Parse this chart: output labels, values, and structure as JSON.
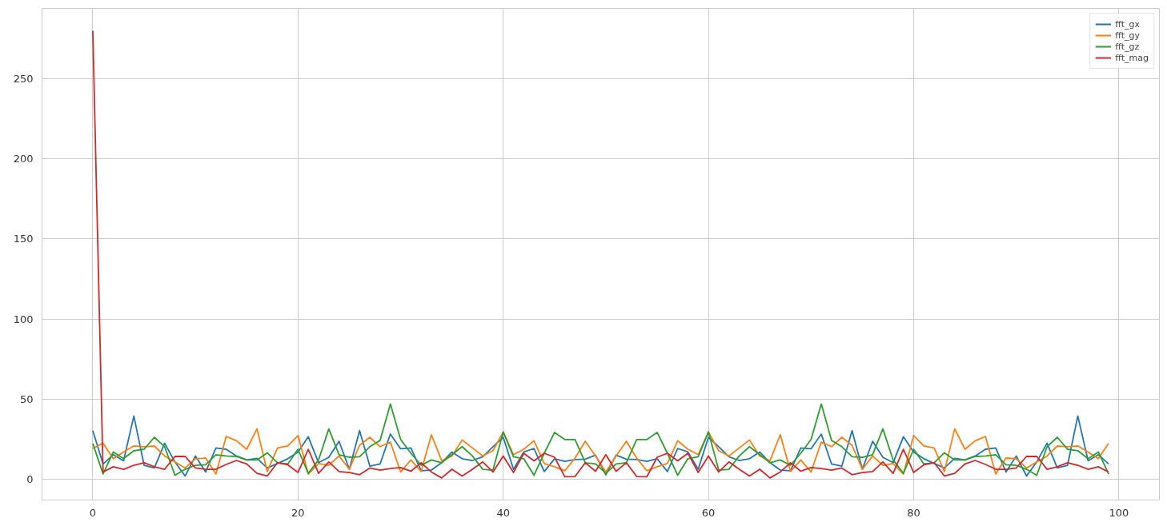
{
  "chart_data": {
    "type": "line",
    "x": [
      0,
      1,
      2,
      3,
      4,
      5,
      6,
      7,
      8,
      9,
      10,
      11,
      12,
      13,
      14,
      15,
      16,
      17,
      18,
      19,
      20,
      21,
      22,
      23,
      24,
      25,
      26,
      27,
      28,
      29,
      30,
      31,
      32,
      33,
      34,
      35,
      36,
      37,
      38,
      39,
      40,
      41,
      42,
      43,
      44,
      45,
      46,
      47,
      48,
      49,
      50,
      51,
      52,
      53,
      54,
      55,
      56,
      57,
      58,
      59,
      60,
      61,
      62,
      63,
      64,
      65,
      66,
      67,
      68,
      69,
      70,
      71,
      72,
      73,
      74,
      75,
      76,
      77,
      78,
      79,
      80,
      81,
      82,
      83,
      84,
      85,
      86,
      87,
      88,
      89,
      90,
      91,
      92,
      93,
      94,
      95,
      96,
      97,
      98,
      99
    ],
    "series": [
      {
        "name": "fft_gx",
        "color": "#1f77b4",
        "values": [
          30.3,
          9.5,
          15.3,
          11.5,
          39.5,
          8.7,
          7,
          22.5,
          10.8,
          2,
          14.5,
          4.5,
          19.5,
          18.7,
          14.5,
          12,
          13,
          7,
          9.8,
          12.8,
          17,
          26.5,
          10.3,
          13.7,
          23.7,
          6.2,
          30.3,
          8.2,
          9.5,
          28.2,
          19,
          19.5,
          5.3,
          5.7,
          10.3,
          17,
          12.8,
          11.7,
          14,
          20.3,
          26.2,
          6.2,
          17,
          19.2,
          4.8,
          12.8,
          11.2,
          12.3,
          12.5,
          15,
          2.8,
          15,
          12.5,
          12.3,
          11.2,
          12.8,
          4.8,
          19.2,
          17,
          6.2,
          26.2,
          20.3,
          14,
          11.7,
          12.8,
          17,
          10.3,
          5.7,
          5.3,
          19.5,
          19,
          28.2,
          9.5,
          8.2,
          30.3,
          6.2,
          23.7,
          13.7,
          10.3,
          26.5,
          17,
          12.8,
          9.8,
          7,
          13,
          12,
          14.5,
          18.7,
          19.5,
          4.5,
          14.5,
          2,
          10.8,
          22.5,
          7,
          8.7,
          39.5,
          11.5,
          15.3,
          9.5
        ]
      },
      {
        "name": "fft_gy",
        "color": "#ff7f0e",
        "values": [
          19.2,
          22.5,
          12.8,
          17,
          20.8,
          20.3,
          20.7,
          14.5,
          10.8,
          7,
          12.8,
          13.2,
          3.2,
          26.7,
          24,
          18.7,
          31.5,
          4.8,
          19.5,
          20.7,
          27.3,
          3.2,
          9.8,
          8.7,
          14.5,
          6.2,
          21.2,
          26.2,
          20.3,
          23.2,
          4.5,
          12,
          4.8,
          27.8,
          11.5,
          14.5,
          24.5,
          19.5,
          14.5,
          17.8,
          29.5,
          15.3,
          18.7,
          24,
          9.8,
          7.8,
          5.3,
          13.2,
          23.7,
          14.5,
          4.5,
          14.5,
          23.7,
          13.2,
          5.3,
          7.8,
          9.8,
          24,
          18.7,
          15.3,
          29.5,
          17.8,
          14.5,
          19.5,
          24.5,
          14.5,
          11.5,
          27.8,
          4.8,
          12,
          4.5,
          23.2,
          20.3,
          26.2,
          21.2,
          6.2,
          14.5,
          8.7,
          9.8,
          3.2,
          27.3,
          20.7,
          19.5,
          4.8,
          31.5,
          18.7,
          24,
          26.7,
          3.2,
          13.2,
          12.8,
          7,
          10.8,
          14.5,
          20.7,
          20.3,
          20.8,
          17,
          12.8,
          22.5
        ]
      },
      {
        "name": "fft_gz",
        "color": "#2ca02c",
        "values": [
          22.3,
          3.3,
          17,
          12.8,
          17.8,
          18.7,
          26.2,
          20.3,
          2.5,
          6.2,
          8.7,
          9,
          15.3,
          14.5,
          14.2,
          12,
          12,
          16.5,
          10.3,
          9.5,
          18.7,
          3.7,
          12,
          31.5,
          15.3,
          13.7,
          14,
          20.3,
          24.2,
          47,
          24.8,
          16.2,
          8.7,
          12,
          10.3,
          15.3,
          20.3,
          14.5,
          6.2,
          5.7,
          29.5,
          14,
          12.8,
          2.5,
          16.2,
          29.2,
          24.8,
          24.8,
          10.3,
          9.5,
          3.7,
          9.5,
          10.3,
          24.8,
          24.8,
          29.2,
          16.2,
          2.5,
          12.8,
          14,
          29.5,
          5.7,
          6.2,
          14.5,
          20.3,
          15.3,
          10.3,
          12,
          8.7,
          16.2,
          24.8,
          47,
          24.2,
          20.3,
          14,
          13.7,
          15.3,
          31.5,
          12,
          3.7,
          18.7,
          9.5,
          10.3,
          16.5,
          12,
          12,
          14.2,
          14.5,
          15.3,
          9,
          8.7,
          6.2,
          2.5,
          20.3,
          26.2,
          18.7,
          17.8,
          12.8,
          17,
          3.3
        ]
      },
      {
        "name": "fft_mag",
        "color": "#d62728",
        "values": [
          280,
          4.5,
          7.8,
          6.2,
          8.7,
          10.3,
          7.8,
          6.2,
          14.2,
          14.2,
          7,
          6.2,
          6.2,
          9.2,
          11.7,
          9.5,
          3.7,
          2,
          10.3,
          9,
          4.2,
          18.7,
          3.7,
          10.8,
          4.8,
          4.2,
          2.8,
          7,
          5.7,
          6.7,
          7.3,
          5,
          10.3,
          4.5,
          0.8,
          6.2,
          2,
          6.2,
          10.8,
          4.5,
          14.5,
          4.2,
          16.2,
          11.5,
          16.2,
          13.7,
          1.5,
          1.7,
          10.3,
          5,
          15.3,
          5,
          10.3,
          1.7,
          1.5,
          13.7,
          16.2,
          11.5,
          16.2,
          4.2,
          14.5,
          4.5,
          10.8,
          6.2,
          2,
          6.2,
          0.8,
          4.5,
          10.3,
          5,
          7.3,
          6.7,
          5.7,
          7,
          2.8,
          4.2,
          4.8,
          10.8,
          3.7,
          18.7,
          4.2,
          9,
          10.3,
          2,
          3.7,
          9.5,
          11.7,
          9.2,
          6.2,
          6.2,
          7,
          14.2,
          14.2,
          6.2,
          7.8,
          10.3,
          8.7,
          6.2,
          7.8,
          4.5
        ]
      }
    ],
    "xlim": [
      -4.95,
      103.95
    ],
    "ylim": [
      -13,
      294
    ],
    "xticks": [
      0,
      20,
      40,
      60,
      80,
      100
    ],
    "yticks": [
      0,
      50,
      100,
      150,
      200,
      250
    ],
    "grid": true,
    "legend": "top right",
    "line_style": "solid",
    "marker": "none"
  }
}
